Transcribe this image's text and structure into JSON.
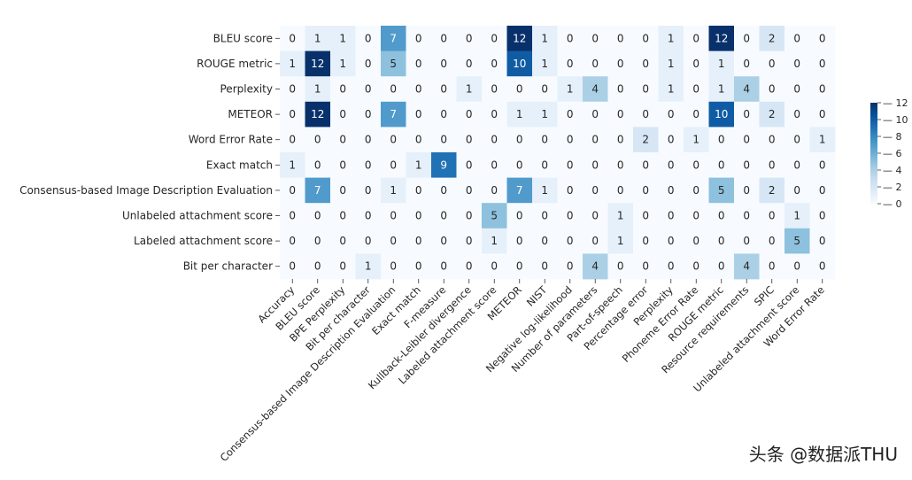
{
  "chart_data": {
    "type": "heatmap",
    "rows": [
      "BLEU score",
      "ROUGE metric",
      "Perplexity",
      "METEOR",
      "Word Error Rate",
      "Exact match",
      "Consensus-based Image Description Evaluation",
      "Unlabeled attachment score",
      "Labeled attachment score",
      "Bit per character"
    ],
    "columns": [
      "Accuracy",
      "BLEU score",
      "BPE Perplexity",
      "Bit per character",
      "Consensus-based Image Description Evaluation",
      "Exact match",
      "F-measure",
      "Kullback-Leibler divergence",
      "Labeled attachment score",
      "METEOR",
      "NIST",
      "Negative log-likelihood",
      "Number of parameters",
      "Part-of-speech",
      "Percentage error",
      "Perplexity",
      "Phoneme Error Rate",
      "ROUGE metric",
      "Resource requirements",
      "SPIC",
      "Unlabeled attachment score",
      "Word Error Rate"
    ],
    "values": [
      [
        0,
        1,
        1,
        0,
        7,
        0,
        0,
        0,
        0,
        12,
        1,
        0,
        0,
        0,
        0,
        1,
        0,
        12,
        0,
        2,
        0,
        0
      ],
      [
        1,
        12,
        1,
        0,
        5,
        0,
        0,
        0,
        0,
        10,
        1,
        0,
        0,
        0,
        0,
        1,
        0,
        1,
        0,
        0,
        0,
        0
      ],
      [
        0,
        1,
        0,
        0,
        0,
        0,
        0,
        1,
        0,
        0,
        0,
        1,
        4,
        0,
        0,
        1,
        0,
        1,
        4,
        0,
        0,
        0
      ],
      [
        0,
        12,
        0,
        0,
        7,
        0,
        0,
        0,
        0,
        1,
        1,
        0,
        0,
        0,
        0,
        0,
        0,
        10,
        0,
        2,
        0,
        0
      ],
      [
        0,
        0,
        0,
        0,
        0,
        0,
        0,
        0,
        0,
        0,
        0,
        0,
        0,
        0,
        2,
        0,
        1,
        0,
        0,
        0,
        0,
        1
      ],
      [
        1,
        0,
        0,
        0,
        0,
        1,
        9,
        0,
        0,
        0,
        0,
        0,
        0,
        0,
        0,
        0,
        0,
        0,
        0,
        0,
        0,
        0
      ],
      [
        0,
        7,
        0,
        0,
        1,
        0,
        0,
        0,
        0,
        7,
        1,
        0,
        0,
        0,
        0,
        0,
        0,
        5,
        0,
        2,
        0,
        0
      ],
      [
        0,
        0,
        0,
        0,
        0,
        0,
        0,
        0,
        5,
        0,
        0,
        0,
        0,
        1,
        0,
        0,
        0,
        0,
        0,
        0,
        1,
        0
      ],
      [
        0,
        0,
        0,
        0,
        0,
        0,
        0,
        0,
        1,
        0,
        0,
        0,
        0,
        1,
        0,
        0,
        0,
        0,
        0,
        0,
        5,
        0
      ],
      [
        0,
        0,
        0,
        1,
        0,
        0,
        0,
        0,
        0,
        0,
        0,
        0,
        4,
        0,
        0,
        0,
        0,
        0,
        4,
        0,
        0,
        0
      ]
    ],
    "colorbar": {
      "min": 0,
      "max": 12,
      "ticks": [
        "0",
        "2",
        "4",
        "6",
        "8",
        "10",
        "12"
      ]
    },
    "colormap": [
      "#f7fbff",
      "#deebf7",
      "#c6dbef",
      "#9ecae1",
      "#6baed6",
      "#4292c6",
      "#2171b5",
      "#08519c",
      "#08306b"
    ],
    "text_dark": "#262626",
    "text_light": "#ffffff"
  },
  "watermark": "头条 @数据派THU"
}
